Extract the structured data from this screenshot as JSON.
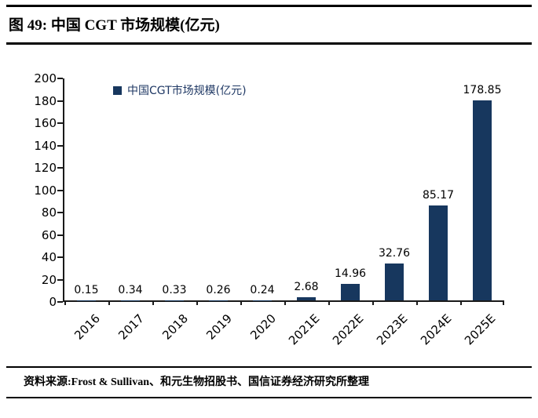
{
  "figure": {
    "title": "图 49: 中国 CGT 市场规模(亿元)",
    "source": "资料来源:Frost & Sullivan、和元生物招股书、国信证券经济研究所整理"
  },
  "chart_data": {
    "type": "bar",
    "title": "",
    "legend": "中国CGT市场规模(亿元)",
    "categories": [
      "2016",
      "2017",
      "2018",
      "2019",
      "2020",
      "2021E",
      "2022E",
      "2023E",
      "2024E",
      "2025E"
    ],
    "values": [
      0.15,
      0.34,
      0.33,
      0.26,
      0.24,
      2.68,
      14.96,
      32.76,
      85.17,
      178.85
    ],
    "xlabel": "",
    "ylabel": "",
    "ylim": [
      0,
      200
    ],
    "ytick_step": 20,
    "grid": false,
    "legend_position": "top-left-inside",
    "bar_color": "#17375E",
    "data_labels": true
  }
}
